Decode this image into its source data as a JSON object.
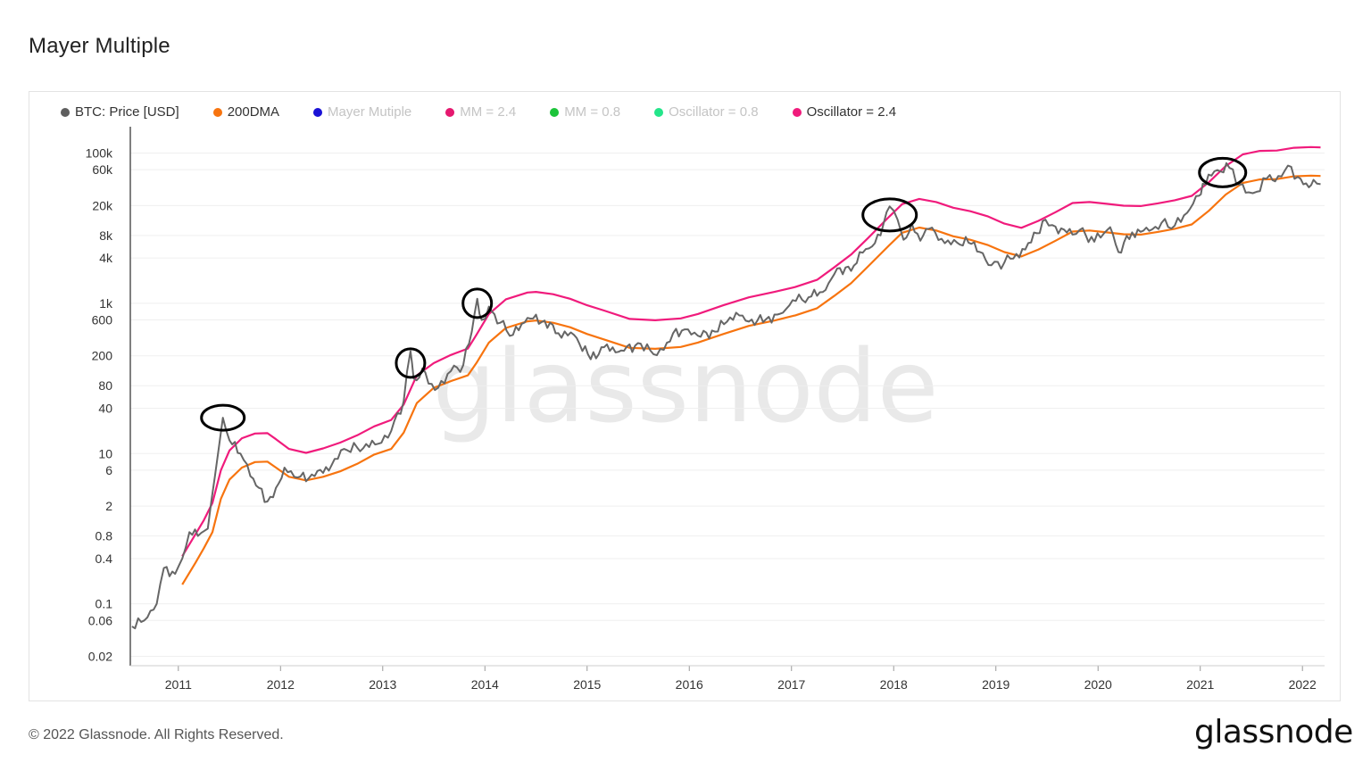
{
  "page": {
    "title": "Mayer Multiple",
    "watermark": "glassnode",
    "copyright": "© 2022 Glassnode. All Rights Reserved.",
    "logo_text": "glassnode"
  },
  "legend": [
    {
      "label": "BTC: Price [USD]",
      "color": "#5e5e5e",
      "muted": false
    },
    {
      "label": "200DMA",
      "color": "#f7740f",
      "muted": false
    },
    {
      "label": "Mayer Mutiple",
      "color": "#1a12d6",
      "muted": true
    },
    {
      "label": "MM = 2.4",
      "color": "#e5186f",
      "muted": true
    },
    {
      "label": "MM = 0.8",
      "color": "#1cc43a",
      "muted": true
    },
    {
      "label": "Oscillator = 0.8",
      "color": "#24e58a",
      "muted": true
    },
    {
      "label": "Oscillator = 2.4",
      "color": "#f01b7c",
      "muted": false
    }
  ],
  "chart_data": {
    "type": "line",
    "yscale": "log",
    "y_ticks": [
      "100k",
      "60k",
      "20k",
      "8k",
      "4k",
      "1k",
      "600",
      "200",
      "80",
      "40",
      "10",
      "6",
      "2",
      "0.8",
      "0.4",
      "0.1",
      "0.06",
      "0.02"
    ],
    "y_tick_values": [
      100000,
      60000,
      20000,
      8000,
      4000,
      1000,
      600,
      200,
      80,
      40,
      10,
      6,
      2,
      0.8,
      0.4,
      0.1,
      0.06,
      0.02
    ],
    "x_ticks": [
      "2011",
      "2012",
      "2013",
      "2014",
      "2015",
      "2016",
      "2017",
      "2018",
      "2019",
      "2020",
      "2021",
      "2022"
    ],
    "x_range": [
      "2010-07",
      "2022-03"
    ],
    "series": [
      {
        "name": "BTC: Price [USD]",
        "color": "#666666",
        "points": [
          [
            "2010-07-18",
            0.05
          ],
          [
            "2010-09-01",
            0.06
          ],
          [
            "2010-10-15",
            0.1
          ],
          [
            "2010-11-10",
            0.3
          ],
          [
            "2010-12-20",
            0.25
          ],
          [
            "2011-01-15",
            0.4
          ],
          [
            "2011-02-10",
            0.9
          ],
          [
            "2011-03-10",
            0.8
          ],
          [
            "2011-04-15",
            1.0
          ],
          [
            "2011-05-10",
            5.0
          ],
          [
            "2011-06-08",
            30.0
          ],
          [
            "2011-07-01",
            15.0
          ],
          [
            "2011-08-10",
            10.0
          ],
          [
            "2011-09-15",
            5.0
          ],
          [
            "2011-11-15",
            2.3
          ],
          [
            "2011-12-15",
            3.5
          ],
          [
            "2012-01-15",
            6.5
          ],
          [
            "2012-03-01",
            4.8
          ],
          [
            "2012-05-01",
            5.0
          ],
          [
            "2012-07-01",
            7.0
          ],
          [
            "2012-08-15",
            11.5
          ],
          [
            "2012-10-01",
            12.0
          ],
          [
            "2012-12-15",
            13.5
          ],
          [
            "2013-02-01",
            20.0
          ],
          [
            "2013-03-15",
            50.0
          ],
          [
            "2013-04-09",
            230.0
          ],
          [
            "2013-04-20",
            100.0
          ],
          [
            "2013-06-01",
            120.0
          ],
          [
            "2013-07-05",
            70.0
          ],
          [
            "2013-09-01",
            125.0
          ],
          [
            "2013-10-15",
            150.0
          ],
          [
            "2013-11-15",
            420.0
          ],
          [
            "2013-12-04",
            1150.0
          ],
          [
            "2013-12-20",
            600.0
          ],
          [
            "2014-01-15",
            900.0
          ],
          [
            "2014-02-25",
            550.0
          ],
          [
            "2014-04-10",
            380.0
          ],
          [
            "2014-06-01",
            640.0
          ],
          [
            "2014-08-01",
            590.0
          ],
          [
            "2014-09-20",
            400.0
          ],
          [
            "2014-11-15",
            380.0
          ],
          [
            "2015-01-14",
            180.0
          ],
          [
            "2015-03-01",
            260.0
          ],
          [
            "2015-05-01",
            235.0
          ],
          [
            "2015-07-10",
            290.0
          ],
          [
            "2015-08-25",
            210.0
          ],
          [
            "2015-10-01",
            240.0
          ],
          [
            "2015-11-04",
            400.0
          ],
          [
            "2015-12-15",
            450.0
          ],
          [
            "2016-02-01",
            370.0
          ],
          [
            "2016-04-01",
            420.0
          ],
          [
            "2016-06-16",
            750.0
          ],
          [
            "2016-08-01",
            570.0
          ],
          [
            "2016-10-01",
            610.0
          ],
          [
            "2016-12-01",
            750.0
          ],
          [
            "2017-01-05",
            1100.0
          ],
          [
            "2017-03-01",
            1200.0
          ],
          [
            "2017-05-01",
            1500.0
          ],
          [
            "2017-06-12",
            2900.0
          ],
          [
            "2017-08-01",
            2700.0
          ],
          [
            "2017-09-01",
            4800.0
          ],
          [
            "2017-10-15",
            5700.0
          ],
          [
            "2017-11-15",
            8000.0
          ],
          [
            "2017-12-17",
            19500.0
          ],
          [
            "2018-01-15",
            13000.0
          ],
          [
            "2018-02-06",
            7000.0
          ],
          [
            "2018-03-05",
            11500.0
          ],
          [
            "2018-04-05",
            6800.0
          ],
          [
            "2018-05-05",
            9800.0
          ],
          [
            "2018-07-01",
            6300.0
          ],
          [
            "2018-08-15",
            6400.0
          ],
          [
            "2018-10-15",
            6500.0
          ],
          [
            "2018-11-25",
            3800.0
          ],
          [
            "2018-12-15",
            3200.0
          ],
          [
            "2019-02-01",
            3500.0
          ],
          [
            "2019-04-15",
            5200.0
          ],
          [
            "2019-06-26",
            13000.0
          ],
          [
            "2019-08-01",
            10500.0
          ],
          [
            "2019-10-01",
            8200.0
          ],
          [
            "2019-10-27",
            9500.0
          ],
          [
            "2019-12-18",
            6600.0
          ],
          [
            "2020-02-14",
            10300.0
          ],
          [
            "2020-03-13",
            4800.0
          ],
          [
            "2020-05-01",
            8800.0
          ],
          [
            "2020-07-01",
            9200.0
          ],
          [
            "2020-08-15",
            11800.0
          ],
          [
            "2020-10-01",
            10800.0
          ],
          [
            "2020-11-15",
            16000.0
          ],
          [
            "2020-12-27",
            27000.0
          ],
          [
            "2021-01-10",
            39000.0
          ],
          [
            "2021-02-21",
            57000.0
          ],
          [
            "2021-04-14",
            63500.0
          ],
          [
            "2021-05-20",
            38000.0
          ],
          [
            "2021-06-22",
            30000.0
          ],
          [
            "2021-07-20",
            30500.0
          ],
          [
            "2021-09-06",
            51000.0
          ],
          [
            "2021-09-25",
            42000.0
          ],
          [
            "2021-11-10",
            68000.0
          ],
          [
            "2021-12-15",
            48000.0
          ],
          [
            "2022-01-24",
            35000.0
          ],
          [
            "2022-02-10",
            44000.0
          ],
          [
            "2022-03-05",
            38500.0
          ]
        ]
      },
      {
        "name": "200DMA",
        "color": "#f7740f",
        "points": [
          [
            "2011-01-15",
            0.18
          ],
          [
            "2011-03-01",
            0.35
          ],
          [
            "2011-04-01",
            0.55
          ],
          [
            "2011-05-01",
            0.9
          ],
          [
            "2011-06-01",
            2.5
          ],
          [
            "2011-07-01",
            4.5
          ],
          [
            "2011-08-15",
            6.5
          ],
          [
            "2011-10-01",
            7.7
          ],
          [
            "2011-11-15",
            7.8
          ],
          [
            "2011-12-15",
            6.5
          ],
          [
            "2012-02-01",
            4.9
          ],
          [
            "2012-04-01",
            4.4
          ],
          [
            "2012-06-01",
            4.9
          ],
          [
            "2012-08-01",
            5.8
          ],
          [
            "2012-10-01",
            7.3
          ],
          [
            "2012-12-01",
            9.7
          ],
          [
            "2013-02-01",
            11.5
          ],
          [
            "2013-03-15",
            19.0
          ],
          [
            "2013-05-01",
            47.0
          ],
          [
            "2013-07-01",
            75.0
          ],
          [
            "2013-09-01",
            92.0
          ],
          [
            "2013-11-01",
            110.0
          ],
          [
            "2013-12-01",
            160.0
          ],
          [
            "2014-01-15",
            300.0
          ],
          [
            "2014-03-15",
            470.0
          ],
          [
            "2014-06-01",
            575.0
          ],
          [
            "2014-07-01",
            590.0
          ],
          [
            "2014-09-01",
            550.0
          ],
          [
            "2014-11-01",
            480.0
          ],
          [
            "2015-01-01",
            390.0
          ],
          [
            "2015-03-01",
            330.0
          ],
          [
            "2015-06-01",
            255.0
          ],
          [
            "2015-09-01",
            248.0
          ],
          [
            "2015-12-01",
            262.0
          ],
          [
            "2016-02-01",
            300.0
          ],
          [
            "2016-05-01",
            390.0
          ],
          [
            "2016-08-01",
            500.0
          ],
          [
            "2016-11-01",
            590.0
          ],
          [
            "2017-01-15",
            690.0
          ],
          [
            "2017-04-01",
            860.0
          ],
          [
            "2017-06-01",
            1250.0
          ],
          [
            "2017-08-01",
            1850.0
          ],
          [
            "2017-10-01",
            3100.0
          ],
          [
            "2017-12-15",
            5900.0
          ],
          [
            "2018-02-01",
            8700.0
          ],
          [
            "2018-04-01",
            10200.0
          ],
          [
            "2018-06-01",
            9300.0
          ],
          [
            "2018-08-01",
            7800.0
          ],
          [
            "2018-10-01",
            7000.0
          ],
          [
            "2018-12-01",
            6000.0
          ],
          [
            "2019-02-01",
            4800.0
          ],
          [
            "2019-04-01",
            4200.0
          ],
          [
            "2019-06-01",
            5200.0
          ],
          [
            "2019-08-01",
            6800.0
          ],
          [
            "2019-10-01",
            9000.0
          ],
          [
            "2019-12-01",
            9300.0
          ],
          [
            "2020-02-01",
            8800.0
          ],
          [
            "2020-04-01",
            8300.0
          ],
          [
            "2020-06-01",
            8200.0
          ],
          [
            "2020-08-01",
            8900.0
          ],
          [
            "2020-10-01",
            9800.0
          ],
          [
            "2020-12-01",
            11200.0
          ],
          [
            "2021-02-01",
            17000.0
          ],
          [
            "2021-04-01",
            28000.0
          ],
          [
            "2021-06-01",
            40000.0
          ],
          [
            "2021-08-01",
            44500.0
          ],
          [
            "2021-10-01",
            45000.0
          ],
          [
            "2021-12-01",
            49000.0
          ],
          [
            "2022-02-01",
            50000.0
          ],
          [
            "2022-03-05",
            49500.0
          ]
        ]
      },
      {
        "name": "Oscillator = 2.4",
        "color": "#f01b7c",
        "points": [
          [
            "2011-01-15",
            0.43
          ],
          [
            "2011-03-01",
            0.84
          ],
          [
            "2011-04-01",
            1.3
          ],
          [
            "2011-05-01",
            2.2
          ],
          [
            "2011-06-01",
            6.0
          ],
          [
            "2011-07-01",
            11.0
          ],
          [
            "2011-08-15",
            16.0
          ],
          [
            "2011-10-01",
            18.5
          ],
          [
            "2011-11-15",
            18.7
          ],
          [
            "2011-12-15",
            15.5
          ],
          [
            "2012-02-01",
            11.5
          ],
          [
            "2012-04-01",
            10.2
          ],
          [
            "2012-06-01",
            11.7
          ],
          [
            "2012-08-01",
            14.0
          ],
          [
            "2012-10-01",
            17.5
          ],
          [
            "2012-12-01",
            23.0
          ],
          [
            "2013-02-01",
            28.0
          ],
          [
            "2013-03-15",
            45.0
          ],
          [
            "2013-05-01",
            110.0
          ],
          [
            "2013-07-01",
            160.0
          ],
          [
            "2013-09-01",
            205.0
          ],
          [
            "2013-11-01",
            250.0
          ],
          [
            "2013-12-01",
            380.0
          ],
          [
            "2014-01-15",
            720.0
          ],
          [
            "2014-03-15",
            1130.0
          ],
          [
            "2014-06-01",
            1390.0
          ],
          [
            "2014-07-01",
            1420.0
          ],
          [
            "2014-09-01",
            1320.0
          ],
          [
            "2014-11-01",
            1150.0
          ],
          [
            "2015-01-01",
            940.0
          ],
          [
            "2015-03-01",
            800.0
          ],
          [
            "2015-06-01",
            620.0
          ],
          [
            "2015-09-01",
            595.0
          ],
          [
            "2015-12-01",
            630.0
          ],
          [
            "2016-02-01",
            720.0
          ],
          [
            "2016-05-01",
            940.0
          ],
          [
            "2016-08-01",
            1200.0
          ],
          [
            "2016-11-01",
            1420.0
          ],
          [
            "2017-01-15",
            1650.0
          ],
          [
            "2017-04-01",
            2050.0
          ],
          [
            "2017-06-01",
            3000.0
          ],
          [
            "2017-08-01",
            4450.0
          ],
          [
            "2017-10-01",
            7400.0
          ],
          [
            "2017-12-15",
            14200.0
          ],
          [
            "2018-02-01",
            20900.0
          ],
          [
            "2018-04-01",
            24500.0
          ],
          [
            "2018-06-01",
            22300.0
          ],
          [
            "2018-08-01",
            18700.0
          ],
          [
            "2018-10-01",
            16800.0
          ],
          [
            "2018-12-01",
            14400.0
          ],
          [
            "2019-02-01",
            11500.0
          ],
          [
            "2019-04-01",
            10100.0
          ],
          [
            "2019-06-01",
            12500.0
          ],
          [
            "2019-08-01",
            16300.0
          ],
          [
            "2019-10-01",
            21600.0
          ],
          [
            "2019-12-01",
            22300.0
          ],
          [
            "2020-02-01",
            21100.0
          ],
          [
            "2020-04-01",
            19900.0
          ],
          [
            "2020-06-01",
            19700.0
          ],
          [
            "2020-08-01",
            21400.0
          ],
          [
            "2020-10-01",
            23500.0
          ],
          [
            "2020-12-01",
            26900.0
          ],
          [
            "2021-02-01",
            40800.0
          ],
          [
            "2021-04-01",
            67200.0
          ],
          [
            "2021-06-01",
            96000.0
          ],
          [
            "2021-08-01",
            106800.0
          ],
          [
            "2021-10-01",
            108000.0
          ],
          [
            "2021-12-01",
            117600.0
          ],
          [
            "2022-02-01",
            120000.0
          ],
          [
            "2022-03-05",
            118800.0
          ]
        ]
      }
    ],
    "annotations": [
      {
        "type": "ellipse",
        "date": "2011-06-08",
        "value": 30.0
      },
      {
        "type": "ellipse",
        "date": "2013-04-09",
        "value": 160.0
      },
      {
        "type": "ellipse",
        "date": "2013-12-04",
        "value": 1000.0
      },
      {
        "type": "ellipse",
        "date": "2017-12-17",
        "value": 15000.0
      },
      {
        "type": "ellipse",
        "date": "2021-03-20",
        "value": 55000.0
      }
    ]
  }
}
